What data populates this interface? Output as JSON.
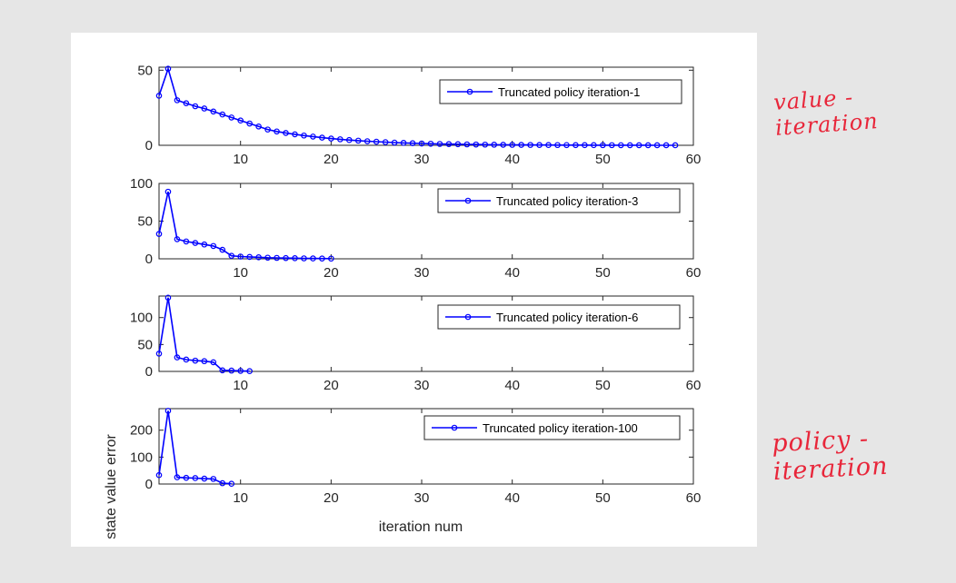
{
  "annotations": {
    "top": "value - iteration",
    "bottom": "policy - iteration"
  },
  "colors": {
    "series": "#0000ff",
    "axis": "#262626",
    "annotation": "#e8263a"
  },
  "chart_data": {
    "type": "line",
    "xlabel": "iteration num",
    "ylabel": "state value error",
    "xlim": [
      1,
      60
    ],
    "xticks": [
      10,
      20,
      30,
      40,
      50,
      60
    ],
    "grid": false,
    "legend_placement": "top-right",
    "subplots": [
      {
        "series_name": "Truncated policy iteration-1",
        "ylim": [
          0,
          52
        ],
        "yticks": [
          0,
          50
        ],
        "x": [
          1,
          2,
          3,
          4,
          5,
          6,
          7,
          8,
          9,
          10,
          11,
          12,
          13,
          14,
          15,
          16,
          17,
          18,
          19,
          20,
          21,
          22,
          23,
          24,
          25,
          26,
          27,
          28,
          29,
          30,
          31,
          32,
          33,
          34,
          35,
          36,
          37,
          38,
          39,
          40,
          41,
          42,
          43,
          44,
          45,
          46,
          47,
          48,
          49,
          50,
          51,
          52,
          53,
          54,
          55,
          56,
          57,
          58
        ],
        "y": [
          33,
          51,
          30,
          28,
          26,
          24.5,
          22.5,
          20.5,
          18.5,
          16.5,
          14.5,
          12.5,
          10.5,
          9.2,
          8.2,
          7.3,
          6.5,
          5.8,
          5.1,
          4.5,
          4,
          3.5,
          3.1,
          2.7,
          2.4,
          2.1,
          1.8,
          1.6,
          1.4,
          1.2,
          1.05,
          0.9,
          0.8,
          0.7,
          0.6,
          0.52,
          0.45,
          0.39,
          0.34,
          0.3,
          0.26,
          0.22,
          0.19,
          0.17,
          0.15,
          0.13,
          0.11,
          0.1,
          0.09,
          0.08,
          0.07,
          0.06,
          0.05,
          0.04,
          0.04,
          0.03,
          0.03,
          0.02
        ]
      },
      {
        "series_name": "Truncated policy iteration-3",
        "ylim": [
          0,
          100
        ],
        "yticks": [
          0,
          50,
          100
        ],
        "x": [
          1,
          2,
          3,
          4,
          5,
          6,
          7,
          8,
          9,
          10,
          11,
          12,
          13,
          14,
          15,
          16,
          17,
          18,
          19,
          20
        ],
        "y": [
          33,
          89,
          26,
          23,
          21,
          19,
          17,
          12,
          4,
          3,
          2.5,
          2,
          1.5,
          1.2,
          1,
          0.8,
          0.6,
          0.5,
          0.4,
          0.3
        ]
      },
      {
        "series_name": "Truncated policy iteration-6",
        "ylim": [
          0,
          140
        ],
        "yticks": [
          0,
          50,
          100
        ],
        "x": [
          1,
          2,
          3,
          4,
          5,
          6,
          7,
          8,
          9,
          10,
          11
        ],
        "y": [
          33,
          137,
          26,
          22,
          20,
          19,
          17,
          2,
          1.5,
          1,
          0.5
        ]
      },
      {
        "series_name": "Truncated policy iteration-100",
        "ylim": [
          0,
          280
        ],
        "yticks": [
          0,
          100,
          200
        ],
        "x": [
          1,
          2,
          3,
          4,
          5,
          6,
          7,
          8,
          9
        ],
        "y": [
          33,
          272,
          25,
          23,
          22,
          20,
          19,
          3,
          1
        ]
      }
    ]
  }
}
